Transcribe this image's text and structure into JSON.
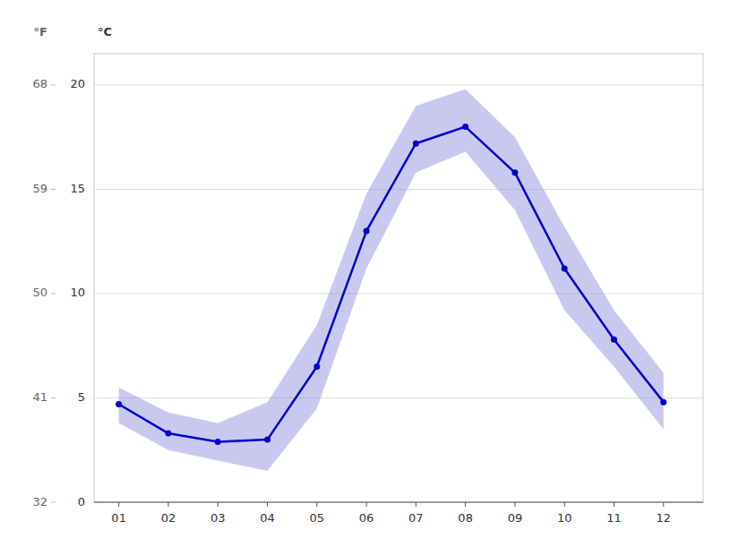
{
  "chart_data": {
    "type": "line",
    "ylabel": "°C",
    "y2label": "°F",
    "x": [
      1,
      2,
      3,
      4,
      5,
      6,
      7,
      8,
      9,
      10,
      11,
      12
    ],
    "xlim": [
      0.5,
      12.8
    ],
    "xticks": [
      {
        "value": 1,
        "label": "01"
      },
      {
        "value": 2,
        "label": "02"
      },
      {
        "value": 3,
        "label": "03"
      },
      {
        "value": 4,
        "label": "04"
      },
      {
        "value": 5,
        "label": "05"
      },
      {
        "value": 6,
        "label": "06"
      },
      {
        "value": 7,
        "label": "07"
      },
      {
        "value": 8,
        "label": "08"
      },
      {
        "value": 9,
        "label": "09"
      },
      {
        "value": 10,
        "label": "10"
      },
      {
        "value": 11,
        "label": "11"
      },
      {
        "value": 12,
        "label": "12"
      }
    ],
    "ylim": [
      0,
      21.5
    ],
    "yticks": [
      0,
      5,
      10,
      15,
      20
    ],
    "y2lim": [
      32,
      70.7
    ],
    "y2ticks": [
      32,
      41,
      50,
      59,
      68
    ],
    "grid": true,
    "series": [
      {
        "type": "band",
        "color": "#8888DD",
        "low": [
          3.8,
          2.5,
          2.0,
          1.5,
          4.5,
          11.2,
          15.8,
          16.8,
          14.0,
          9.2,
          6.5,
          3.5
        ],
        "high": [
          5.5,
          4.3,
          3.8,
          4.8,
          8.5,
          14.8,
          19.0,
          19.8,
          17.5,
          13.2,
          9.2,
          6.2
        ]
      },
      {
        "type": "line",
        "color": "#0000CC",
        "marker": "circle",
        "values": [
          4.7,
          3.3,
          2.9,
          3.0,
          6.5,
          13.0,
          17.2,
          18.0,
          15.8,
          11.2,
          7.8,
          4.8
        ]
      }
    ]
  }
}
